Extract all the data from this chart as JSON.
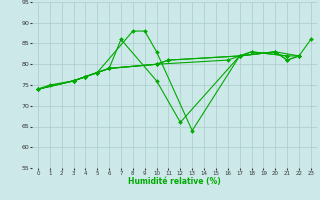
{
  "xlabel": "Humidité relative (%)",
  "bg_color": "#cce8e8",
  "grid_color": "#aacccc",
  "line_color": "#00aa00",
  "xlim": [
    -0.5,
    23.5
  ],
  "ylim": [
    55,
    95
  ],
  "yticks": [
    55,
    60,
    65,
    70,
    75,
    80,
    85,
    90,
    95
  ],
  "xticks": [
    0,
    1,
    2,
    3,
    4,
    5,
    6,
    7,
    8,
    9,
    10,
    11,
    12,
    13,
    14,
    15,
    16,
    17,
    18,
    19,
    20,
    21,
    22,
    23
  ],
  "series": [
    {
      "x": [
        0,
        1,
        3,
        4,
        5,
        8,
        9,
        10,
        13,
        17,
        20,
        21,
        22
      ],
      "y": [
        74,
        75,
        76,
        77,
        78,
        88,
        88,
        83,
        64,
        82,
        83,
        81,
        82
      ]
    },
    {
      "x": [
        0,
        3,
        4,
        5,
        6,
        7,
        10,
        12,
        17,
        20,
        21,
        22,
        23
      ],
      "y": [
        74,
        76,
        77,
        78,
        79,
        86,
        76,
        66,
        82,
        83,
        81,
        82,
        86
      ]
    },
    {
      "x": [
        0,
        3,
        4,
        5,
        6,
        10,
        11,
        17,
        20,
        22
      ],
      "y": [
        74,
        76,
        77,
        78,
        79,
        80,
        81,
        82,
        83,
        82
      ]
    },
    {
      "x": [
        0,
        3,
        4,
        5,
        6,
        10,
        11,
        17,
        18,
        21,
        22
      ],
      "y": [
        74,
        76,
        77,
        78,
        79,
        80,
        81,
        82,
        83,
        82,
        82
      ]
    },
    {
      "x": [
        0,
        3,
        4,
        5,
        6,
        10,
        16,
        17,
        18,
        21
      ],
      "y": [
        74,
        76,
        77,
        78,
        79,
        80,
        81,
        82,
        83,
        82
      ]
    }
  ]
}
